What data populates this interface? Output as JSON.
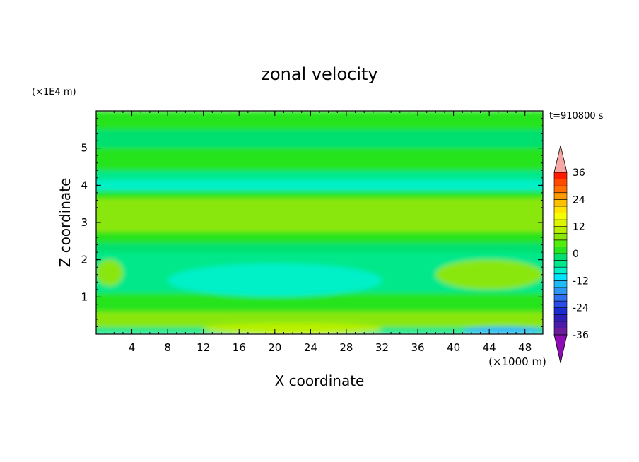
{
  "chart_data": {
    "type": "heatmap",
    "title": "zonal velocity",
    "xlabel": "X coordinate",
    "ylabel": "Z coordinate",
    "x_unit_label": "(×1000 m)",
    "y_unit_label": "(×1E4 m)",
    "time_label": "t=910800 s",
    "xlim": [
      0,
      50
    ],
    "ylim": [
      0,
      6
    ],
    "x_ticks": [
      "4",
      "8",
      "12",
      "16",
      "20",
      "24",
      "28",
      "32",
      "36",
      "40",
      "44",
      "48"
    ],
    "y_ticks": [
      "1",
      "2",
      "3",
      "4",
      "5"
    ],
    "colorbar": {
      "ticks": [
        "36",
        "24",
        "12",
        "0",
        "-12",
        "-24",
        "-36"
      ],
      "levels_bottom_to_top": [
        -36,
        -33,
        -30,
        -27,
        -24,
        -21,
        -18,
        -15,
        -12,
        -9,
        -6,
        -3,
        0,
        3,
        6,
        9,
        12,
        15,
        18,
        21,
        24,
        27,
        30,
        33,
        36
      ],
      "colors_bottom_to_top": [
        "#6a1c9a",
        "#4b1aa8",
        "#2a1fb8",
        "#1a2dd0",
        "#2a4ce6",
        "#2f70f0",
        "#2e96f5",
        "#1fbaf7",
        "#00e5ff",
        "#00f0c8",
        "#00e88a",
        "#00e070",
        "#28e41e",
        "#54ec0a",
        "#8ae70a",
        "#b8f000",
        "#dcf600",
        "#f5ff00",
        "#ffe400",
        "#ffc000",
        "#ff9a00",
        "#ff7000",
        "#ff4a00",
        "#ff1a00"
      ],
      "over_color": "#f4a7a4",
      "under_color": "#8e0cb4"
    },
    "bands": [
      {
        "z": [
          0.0,
          0.18
        ],
        "u": -6,
        "note": "bottom row"
      },
      {
        "z": [
          0.18,
          0.6
        ],
        "u": 6
      },
      {
        "z": [
          0.6,
          1.1
        ],
        "u": 0
      },
      {
        "z": [
          1.1,
          2.2
        ],
        "u": -6
      },
      {
        "z": [
          2.2,
          2.45
        ],
        "u": -3
      },
      {
        "z": [
          2.45,
          2.75
        ],
        "u": 0
      },
      {
        "z": [
          2.75,
          3.65
        ],
        "u": 6
      },
      {
        "z": [
          3.65,
          3.85
        ],
        "u": 0
      },
      {
        "z": [
          3.85,
          4.15
        ],
        "u": -9
      },
      {
        "z": [
          4.15,
          4.4
        ],
        "u": -6
      },
      {
        "z": [
          4.4,
          5.0
        ],
        "u": 0
      },
      {
        "z": [
          5.0,
          5.5
        ],
        "u": -3
      },
      {
        "z": [
          5.5,
          6.0
        ],
        "u": 0
      }
    ],
    "features": [
      {
        "x": [
          16,
          24
        ],
        "z": [
          1.3,
          1.55
        ],
        "u": -15,
        "note": "core minimum"
      },
      {
        "x": [
          8,
          32
        ],
        "z": [
          1.0,
          1.9
        ],
        "u": -9
      },
      {
        "x": [
          41,
          50
        ],
        "z": [
          0.0,
          0.2
        ],
        "u": -15
      },
      {
        "x": [
          12,
          32
        ],
        "z": [
          0.0,
          0.3
        ],
        "u": 9
      },
      {
        "x": [
          38,
          50
        ],
        "z": [
          1.2,
          2.0
        ],
        "u": 6
      },
      {
        "x": [
          0,
          3
        ],
        "z": [
          1.3,
          2.0
        ],
        "u": 6
      }
    ]
  }
}
